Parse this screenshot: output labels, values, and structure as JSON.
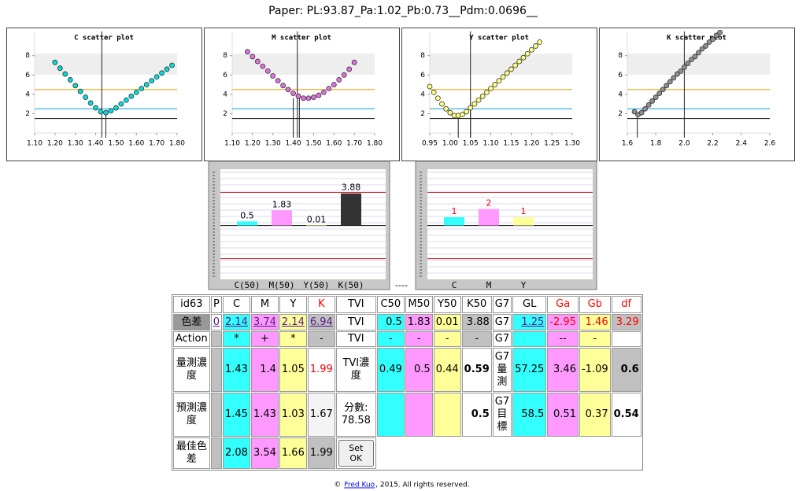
{
  "title": "Paper: PL:93.87_Pa:1.02_Pb:0.73__Pdm:0.0696__",
  "scatter_plots": [
    {
      "type": "scatter",
      "title": "C scatter plot",
      "color": "#00dddd",
      "x": [
        1.2,
        1.225,
        1.25,
        1.275,
        1.3,
        1.325,
        1.35,
        1.375,
        1.4,
        1.425,
        1.45,
        1.475,
        1.5,
        1.525,
        1.55,
        1.575,
        1.6,
        1.625,
        1.65,
        1.675,
        1.7,
        1.725,
        1.75,
        1.775
      ],
      "values": [
        7.3,
        6.7,
        6.1,
        5.5,
        4.9,
        4.3,
        3.7,
        3.1,
        2.6,
        2.2,
        2.1,
        2.3,
        2.6,
        3.0,
        3.4,
        3.8,
        4.2,
        4.6,
        5.0,
        5.4,
        5.8,
        6.2,
        6.6,
        7.0
      ],
      "xlim": [
        1.1,
        1.8
      ],
      "xticks": [
        {
          "value": 1.1,
          "label": "1.10"
        },
        {
          "value": 1.2,
          "label": "1.20"
        },
        {
          "value": 1.3,
          "label": "1.30"
        },
        {
          "value": 1.4,
          "label": "1.40"
        },
        {
          "value": 1.5,
          "label": "1.50"
        },
        {
          "value": 1.6,
          "label": "1.60"
        },
        {
          "value": 1.7,
          "label": "1.70"
        },
        {
          "value": 1.8,
          "label": "1.80"
        }
      ],
      "ylim": [
        0,
        10.5
      ],
      "yticks": [
        2,
        4,
        6,
        8
      ],
      "hlines": [
        {
          "value": 4.5,
          "color": "#f0b030"
        },
        {
          "value": 2.5,
          "color": "#40b0e0"
        },
        {
          "value": 1.5,
          "color": "#222222"
        }
      ],
      "vlines": [
        {
          "value": 1.43,
          "top": 10.5
        },
        {
          "value": 1.45,
          "top": 2.1
        }
      ]
    },
    {
      "type": "scatter",
      "title": "M scatter plot",
      "color": "#e070e0",
      "x": [
        1.175,
        1.2,
        1.225,
        1.25,
        1.275,
        1.3,
        1.325,
        1.35,
        1.375,
        1.4,
        1.425,
        1.45,
        1.475,
        1.5,
        1.525,
        1.55,
        1.575,
        1.6,
        1.625,
        1.65,
        1.675,
        1.7
      ],
      "values": [
        8.4,
        7.9,
        7.4,
        6.9,
        6.4,
        5.9,
        5.4,
        4.9,
        4.5,
        4.1,
        3.8,
        3.6,
        3.6,
        3.7,
        3.9,
        4.2,
        4.6,
        5.0,
        5.5,
        6.0,
        6.6,
        7.3
      ],
      "xlim": [
        1.1,
        1.8
      ],
      "xticks": [
        {
          "value": 1.1,
          "label": "1.10"
        },
        {
          "value": 1.2,
          "label": "1.20"
        },
        {
          "value": 1.3,
          "label": "1.30"
        },
        {
          "value": 1.4,
          "label": "1.40"
        },
        {
          "value": 1.5,
          "label": "1.50"
        },
        {
          "value": 1.6,
          "label": "1.60"
        },
        {
          "value": 1.7,
          "label": "1.70"
        },
        {
          "value": 1.8,
          "label": "1.80"
        }
      ],
      "ylim": [
        0,
        10.5
      ],
      "yticks": [
        2,
        4,
        6,
        8
      ],
      "hlines": [
        {
          "value": 4.5,
          "color": "#f0b030"
        },
        {
          "value": 2.5,
          "color": "#40b0e0"
        },
        {
          "value": 1.5,
          "color": "#222222"
        }
      ],
      "vlines": [
        {
          "value": 1.42,
          "top": 10.5
        },
        {
          "value": 1.4,
          "top": 3.6
        },
        {
          "value": 1.43,
          "top": 3.6
        }
      ]
    },
    {
      "type": "scatter",
      "title": "Y scatter plot",
      "color": "#ffff80",
      "x": [
        0.95,
        0.96,
        0.97,
        0.98,
        0.99,
        1.0,
        1.01,
        1.02,
        1.03,
        1.04,
        1.05,
        1.06,
        1.07,
        1.08,
        1.09,
        1.1,
        1.11,
        1.12,
        1.13,
        1.14,
        1.15,
        1.16,
        1.17,
        1.18,
        1.19,
        1.2,
        1.21,
        1.22
      ],
      "values": [
        4.8,
        4.2,
        3.6,
        3.0,
        2.5,
        2.1,
        1.8,
        1.8,
        1.9,
        2.2,
        2.6,
        3.0,
        3.4,
        3.8,
        4.2,
        4.6,
        5.0,
        5.4,
        5.8,
        6.2,
        6.6,
        7.0,
        7.4,
        7.8,
        8.2,
        8.6,
        9.0,
        9.4
      ],
      "xlim": [
        0.95,
        1.3
      ],
      "xticks": [
        0.95,
        {
          "value": 1.0,
          "label": "1.00"
        },
        1.05,
        {
          "value": 1.1,
          "label": "1.10"
        },
        1.15,
        {
          "value": 1.2,
          "label": "1.20"
        },
        1.25,
        {
          "value": 1.3,
          "label": "1.30"
        }
      ],
      "ylim": [
        0,
        10.5
      ],
      "yticks": [
        2,
        4,
        6,
        8
      ],
      "hlines": [
        {
          "value": 4.5,
          "color": "#f0b030"
        },
        {
          "value": 2.5,
          "color": "#40b0e0"
        },
        {
          "value": 1.5,
          "color": "#222222"
        }
      ],
      "vlines": [
        {
          "value": 1.05,
          "top": 10.5
        },
        {
          "value": 1.02,
          "top": 1.8
        },
        {
          "value": 1.05,
          "top": 2.6
        }
      ]
    },
    {
      "type": "scatter",
      "title": "K scatter plot",
      "color": "#909090",
      "x": [
        1.65,
        1.675,
        1.7,
        1.725,
        1.75,
        1.775,
        1.8,
        1.825,
        1.85,
        1.875,
        1.9,
        1.925,
        1.95,
        1.975,
        2.0,
        2.025,
        2.05,
        2.075,
        2.1,
        2.125,
        2.15,
        2.175,
        2.2,
        2.225,
        2.25
      ],
      "values": [
        2.2,
        1.9,
        2.1,
        2.5,
        2.9,
        3.3,
        3.7,
        4.1,
        4.5,
        4.9,
        5.3,
        5.7,
        6.1,
        6.4,
        6.8,
        7.2,
        7.6,
        7.9,
        8.3,
        8.7,
        9.0,
        9.4,
        9.7,
        10.1,
        10.4
      ],
      "xlim": [
        1.6,
        2.6
      ],
      "xticks": [
        1.6,
        1.8,
        {
          "value": 2,
          "label": "2.0"
        },
        2.2,
        2.4,
        2.6
      ],
      "ylim": [
        0,
        10.5
      ],
      "yticks": [
        2,
        4,
        6,
        8
      ],
      "hlines": [
        {
          "value": 4.5,
          "color": "#f0b030"
        },
        {
          "value": 2.5,
          "color": "#40b0e0"
        },
        {
          "value": 1.5,
          "color": "#222222"
        }
      ],
      "vlines": [
        {
          "value": 2.0,
          "top": 10.5
        },
        {
          "value": 1.67,
          "top": 1.9
        }
      ]
    }
  ],
  "bar_charts": [
    {
      "type": "bar",
      "categories": [
        "C(50)",
        "M(50)",
        "Y(50)",
        "K(50)"
      ],
      "values": [
        0.5,
        1.83,
        0.01,
        3.88
      ],
      "colors": [
        "#33ffff",
        "#ff99ff",
        "#ffff99",
        "#333333"
      ],
      "label_color": "#000000",
      "ylim": [
        -6.5,
        6.8
      ],
      "limits": [
        -4,
        4
      ]
    },
    {
      "type": "bar",
      "categories": [
        "C",
        "M",
        "Y"
      ],
      "values": [
        1,
        2,
        1
      ],
      "colors": [
        "#33ffff",
        "#ff99ff",
        "#ffff99"
      ],
      "label_color": "#ff0000",
      "ylim": [
        -6.5,
        6.8
      ],
      "limits": [
        -4,
        4
      ]
    }
  ],
  "separator": "----",
  "table": {
    "rows": [
      [
        "id63",
        "P",
        "C",
        "M",
        "Y",
        "K",
        "TVI",
        "C50",
        "M50",
        "Y50",
        "K50",
        "G7",
        "GL",
        "Ga",
        "Gb",
        "df"
      ],
      [
        "色差",
        0,
        2.14,
        3.74,
        2.14,
        6.94,
        "TVI",
        0.5,
        1.83,
        0.01,
        3.88,
        "G7",
        1.25,
        -2.95,
        1.46,
        3.29
      ],
      [
        "Action",
        null,
        "*",
        "+",
        "*",
        "-",
        "TVI",
        "-",
        "-",
        "-",
        "-",
        "G7",
        null,
        "--",
        "-",
        null
      ],
      [
        "量測濃度",
        null,
        1.43,
        1.4,
        1.05,
        1.99,
        "TVI濃度",
        0.49,
        0.5,
        0.44,
        0.59,
        "G7量測",
        57.25,
        3.46,
        -1.09,
        0.6
      ],
      [
        "預測濃度",
        null,
        1.45,
        1.43,
        1.03,
        1.67,
        {
          "label": "分數:",
          "value": 78.58
        },
        null,
        null,
        null,
        0.5,
        "G7目標",
        58.5,
        0.51,
        0.37,
        0.54
      ],
      [
        "最佳色差",
        null,
        2.08,
        3.54,
        1.66,
        1.99,
        "Set OK"
      ]
    ]
  },
  "footer": {
    "prefix": "©",
    "link": "Fred Kuo",
    "suffix": ", 2015. All rights reserved."
  }
}
